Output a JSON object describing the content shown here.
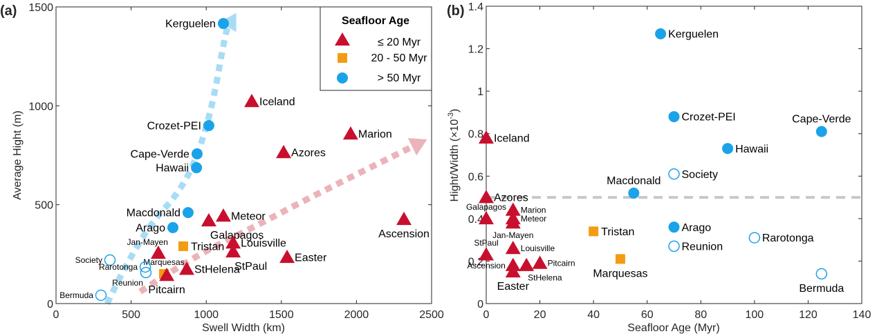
{
  "colors": {
    "young": "#C8102E",
    "mid": "#F39C12",
    "old": "#1AA3E8",
    "arrow_blue": "#A8DCF5",
    "arrow_red": "#EBB3BA",
    "ref_line": "#C8C8C8",
    "axis": "#262626"
  },
  "chart_data": [
    {
      "type": "scatter",
      "panel_label": "(a)",
      "title": "",
      "xlabel": "Swell Width (km)",
      "ylabel": "Average Hight (m)",
      "xlim": [
        0,
        2500
      ],
      "ylim": [
        0,
        1500
      ],
      "xticks": [
        0,
        500,
        1000,
        1500,
        2000,
        2500
      ],
      "xtick_labels": [
        "0",
        "500",
        "1000",
        "1500",
        "2000",
        "2500"
      ],
      "yticks": [
        0,
        500,
        1000,
        1500
      ],
      "ytick_labels": [
        "0",
        "500",
        "1000",
        "1500"
      ],
      "grid": false,
      "legend": {
        "title": "Seafloor Age",
        "placement": "top-right",
        "entries": [
          {
            "marker": "triangle",
            "label": "≤ 20 Myr",
            "group": "young"
          },
          {
            "marker": "square",
            "label": "20 - 50 Myr",
            "group": "mid"
          },
          {
            "marker": "circle",
            "label": "> 50 Myr",
            "group": "old"
          }
        ]
      },
      "annotations": [
        {
          "type": "dashed-arrow",
          "color_key": "arrow_blue",
          "points": [
            [
              340,
              0
            ],
            [
              560,
              350
            ],
            [
              870,
              600
            ],
            [
              1030,
              950
            ],
            [
              1130,
              1380
            ],
            [
              1200,
              1470
            ]
          ]
        },
        {
          "type": "dashed-arrow",
          "color_key": "arrow_red",
          "points": [
            [
              560,
              60
            ],
            [
              900,
              230
            ],
            [
              1300,
              380
            ],
            [
              1750,
              560
            ],
            [
              2470,
              830
            ]
          ]
        }
      ],
      "points": [
        {
          "name": "Kerguelen",
          "x": 1114,
          "y": 1416,
          "group": "old",
          "filled": true,
          "label_pos": "left",
          "label_size": "large"
        },
        {
          "name": "Iceland",
          "x": 1303,
          "y": 1022,
          "group": "young",
          "filled": true,
          "label_pos": "right",
          "label_size": "large"
        },
        {
          "name": "Marion",
          "x": 1961,
          "y": 858,
          "group": "young",
          "filled": true,
          "label_pos": "right",
          "label_size": "large"
        },
        {
          "name": "Azores",
          "x": 1515,
          "y": 764,
          "group": "young",
          "filled": true,
          "label_pos": "right",
          "label_size": "large"
        },
        {
          "name": "Crozet-PEI",
          "x": 1017,
          "y": 900,
          "group": "old",
          "filled": true,
          "label_pos": "left",
          "label_size": "large"
        },
        {
          "name": "Cape-Verde",
          "x": 939,
          "y": 757,
          "group": "old",
          "filled": true,
          "label_pos": "left",
          "label_size": "large"
        },
        {
          "name": "Hawaii",
          "x": 935,
          "y": 687,
          "group": "old",
          "filled": true,
          "label_pos": "left",
          "label_size": "large"
        },
        {
          "name": "Macdonald",
          "x": 879,
          "y": 460,
          "group": "old",
          "filled": true,
          "label_pos": "left",
          "label_size": "large"
        },
        {
          "name": "Arago",
          "x": 778,
          "y": 384,
          "group": "old",
          "filled": true,
          "label_pos": "left",
          "label_size": "large"
        },
        {
          "name": "Meteor",
          "x": 1114,
          "y": 443,
          "group": "young",
          "filled": true,
          "label_pos": "right",
          "label_size": "large"
        },
        {
          "name": "Galapagos",
          "x": 1017,
          "y": 419,
          "group": "young",
          "filled": true,
          "label_pos": "below-right",
          "label_size": "large"
        },
        {
          "name": "Ascension",
          "x": 2316,
          "y": 426,
          "group": "young",
          "filled": true,
          "label_pos": "below",
          "label_size": "large"
        },
        {
          "name": "Louisville",
          "x": 1179,
          "y": 307,
          "group": "young",
          "filled": true,
          "label_pos": "right",
          "label_size": "large"
        },
        {
          "name": "StPaul",
          "x": 1179,
          "y": 262,
          "group": "young",
          "filled": true,
          "label_pos": "below-right",
          "label_size": "large"
        },
        {
          "name": "Easter",
          "x": 1538,
          "y": 234,
          "group": "young",
          "filled": true,
          "label_pos": "right",
          "label_size": "large"
        },
        {
          "name": "Jan-Mayen",
          "x": 681,
          "y": 255,
          "group": "young",
          "filled": true,
          "label_pos": "above-left",
          "label_size": "small"
        },
        {
          "name": "Tristan",
          "x": 847,
          "y": 290,
          "group": "mid",
          "filled": true,
          "label_pos": "right",
          "label_size": "large"
        },
        {
          "name": "StHelena",
          "x": 870,
          "y": 174,
          "group": "young",
          "filled": true,
          "label_pos": "right",
          "label_size": "large"
        },
        {
          "name": "Marquesas",
          "x": 718,
          "y": 150,
          "group": "mid",
          "filled": true,
          "label_pos": "above",
          "label_size": "small"
        },
        {
          "name": "Pitcairn",
          "x": 737,
          "y": 143,
          "group": "young",
          "filled": true,
          "label_pos": "below",
          "label_size": "large"
        },
        {
          "name": "Society",
          "x": 359,
          "y": 220,
          "group": "old",
          "filled": false,
          "label_pos": "left",
          "label_size": "small"
        },
        {
          "name": "Rarotonga",
          "x": 594,
          "y": 185,
          "group": "old",
          "filled": false,
          "label_pos": "left",
          "label_size": "small"
        },
        {
          "name": "Reunion",
          "x": 598,
          "y": 157,
          "group": "old",
          "filled": false,
          "label_pos": "below-left",
          "label_size": "small"
        },
        {
          "name": "Bermuda",
          "x": 299,
          "y": 42,
          "group": "old",
          "filled": false,
          "label_pos": "left",
          "label_size": "small"
        }
      ]
    },
    {
      "type": "scatter",
      "panel_label": "(b)",
      "title": "",
      "xlabel": "Seafloor Age (Myr)",
      "ylabel": "Hight/Width (×10",
      "ylabel_exponent": "-3",
      "ylabel_close": ")",
      "xlim": [
        0,
        140
      ],
      "ylim": [
        0,
        1.4
      ],
      "xticks": [
        0,
        20,
        40,
        60,
        80,
        100,
        120,
        140
      ],
      "xtick_labels": [
        "0",
        "20",
        "40",
        "60",
        "80",
        "100",
        "120",
        "140"
      ],
      "yticks": [
        0,
        0.2,
        0.4,
        0.6,
        0.8,
        1.0,
        1.2,
        1.4
      ],
      "ytick_labels": [
        "0",
        "0.2",
        "0.4",
        "0.6",
        "0.8",
        "1",
        "1.2",
        "1.4"
      ],
      "grid": false,
      "reference_line": {
        "y": 0.5,
        "style": "dashed",
        "color_key": "ref_line"
      },
      "points": [
        {
          "name": "Kerguelen",
          "x": 65,
          "y": 1.27,
          "group": "old",
          "filled": true,
          "label_pos": "right",
          "label_size": "large"
        },
        {
          "name": "Crozet-PEI",
          "x": 70,
          "y": 0.88,
          "group": "old",
          "filled": true,
          "label_pos": "right",
          "label_size": "large"
        },
        {
          "name": "Cape-Verde",
          "x": 125,
          "y": 0.81,
          "group": "old",
          "filled": true,
          "label_pos": "above",
          "label_size": "large"
        },
        {
          "name": "Hawaii",
          "x": 90,
          "y": 0.73,
          "group": "old",
          "filled": true,
          "label_pos": "right",
          "label_size": "large"
        },
        {
          "name": "Society",
          "x": 70,
          "y": 0.61,
          "group": "old",
          "filled": false,
          "label_pos": "right",
          "label_size": "large"
        },
        {
          "name": "Macdonald",
          "x": 55,
          "y": 0.52,
          "group": "old",
          "filled": true,
          "label_pos": "above",
          "label_size": "large"
        },
        {
          "name": "Arago",
          "x": 70,
          "y": 0.36,
          "group": "old",
          "filled": true,
          "label_pos": "right",
          "label_size": "large"
        },
        {
          "name": "Reunion",
          "x": 70,
          "y": 0.27,
          "group": "old",
          "filled": false,
          "label_pos": "right",
          "label_size": "large"
        },
        {
          "name": "Rarotonga",
          "x": 100,
          "y": 0.31,
          "group": "old",
          "filled": false,
          "label_pos": "right",
          "label_size": "large"
        },
        {
          "name": "Bermuda",
          "x": 125,
          "y": 0.14,
          "group": "old",
          "filled": false,
          "label_pos": "below",
          "label_size": "large"
        },
        {
          "name": "Tristan",
          "x": 40,
          "y": 0.34,
          "group": "mid",
          "filled": true,
          "label_pos": "right",
          "label_size": "large"
        },
        {
          "name": "Marquesas",
          "x": 50,
          "y": 0.21,
          "group": "mid",
          "filled": true,
          "label_pos": "below",
          "label_size": "large"
        },
        {
          "name": "Iceland",
          "x": 0,
          "y": 0.78,
          "group": "young",
          "filled": true,
          "label_pos": "right",
          "label_size": "large"
        },
        {
          "name": "Azores",
          "x": 0,
          "y": 0.5,
          "group": "young",
          "filled": true,
          "label_pos": "right",
          "label_size": "large"
        },
        {
          "name": "Galapagos",
          "x": 0,
          "y": 0.4,
          "group": "young",
          "filled": true,
          "label_pos": "above",
          "label_size": "small"
        },
        {
          "name": "StPaul",
          "x": 0,
          "y": 0.23,
          "group": "young",
          "filled": true,
          "label_pos": "above",
          "label_size": "small"
        },
        {
          "name": "Marion",
          "x": 10,
          "y": 0.44,
          "group": "young",
          "filled": true,
          "label_pos": "right",
          "label_size": "small"
        },
        {
          "name": "Meteor",
          "x": 10,
          "y": 0.4,
          "group": "young",
          "filled": true,
          "label_pos": "right",
          "label_size": "small"
        },
        {
          "name": "Jan-Mayen",
          "x": 10,
          "y": 0.38,
          "group": "young",
          "filled": true,
          "label_pos": "below",
          "label_size": "small"
        },
        {
          "name": "Louisville",
          "x": 10,
          "y": 0.26,
          "group": "young",
          "filled": true,
          "label_pos": "right",
          "label_size": "small"
        },
        {
          "name": "Ascension",
          "x": 10,
          "y": 0.18,
          "group": "young",
          "filled": true,
          "label_pos": "left",
          "label_size": "small"
        },
        {
          "name": "Easter",
          "x": 10,
          "y": 0.15,
          "group": "young",
          "filled": true,
          "label_pos": "below",
          "label_size": "large"
        },
        {
          "name": "StHelena",
          "x": 15,
          "y": 0.18,
          "group": "young",
          "filled": true,
          "label_pos": "below-right",
          "label_size": "small"
        },
        {
          "name": "Pitcairn",
          "x": 20,
          "y": 0.19,
          "group": "young",
          "filled": true,
          "label_pos": "right",
          "label_size": "small"
        }
      ]
    }
  ]
}
